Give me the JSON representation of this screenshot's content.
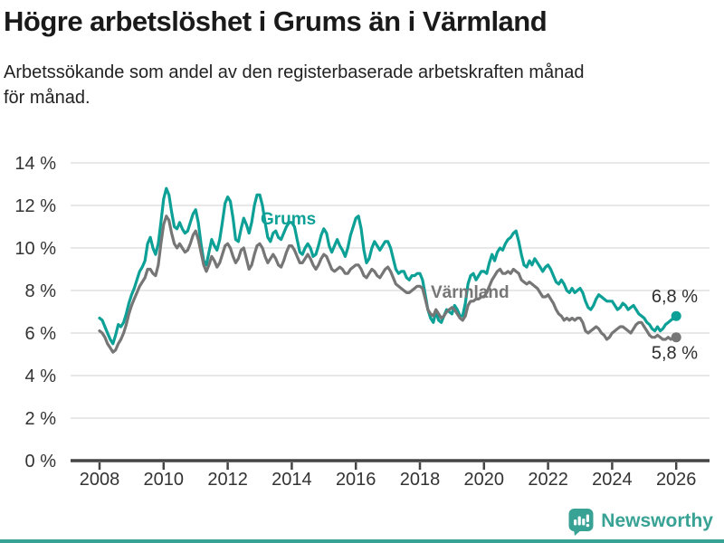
{
  "header": {
    "title": "Högre arbetslöshet i Grums än i Värmland",
    "subtitle_lines": [
      "Arbetssökande som andel av den registerbaserade arbetskraften månad",
      "för månad."
    ]
  },
  "colors": {
    "grums": "#0da096",
    "varmland": "#767676",
    "grid": "#dbdbdb",
    "axis": "#454545",
    "text": "#333333",
    "value_label": "#2e2e2e",
    "brand_teal": "#38a295"
  },
  "footer": {
    "brand_name": "Newsworthy"
  },
  "chart_data": {
    "type": "line",
    "title": "Högre arbetslöshet i Grums än i Värmland",
    "xlabel": "",
    "ylabel": "",
    "unit": "%",
    "frequency": "monthly",
    "start": "2008-01",
    "end": "2026-01",
    "start_year": 2008,
    "ylim": [
      0,
      14
    ],
    "grid": true,
    "legend_position": "inline-labels",
    "y_ticks": [
      0,
      2,
      4,
      6,
      8,
      10,
      12,
      14
    ],
    "y_tick_labels": [
      "0 %",
      "2 %",
      "4 %",
      "6 %",
      "8 %",
      "10 %",
      "12 %",
      "14 %"
    ],
    "x_tick_years": [
      2008,
      2010,
      2012,
      2014,
      2016,
      2018,
      2020,
      2022,
      2024,
      2026
    ],
    "x_tick_labels": [
      "2008",
      "2010",
      "2012",
      "2014",
      "2016",
      "2018",
      "2020",
      "2022",
      "2024",
      "2026"
    ],
    "series": [
      {
        "name": "Grums",
        "color": "#0da096",
        "end_label": "6,8 %",
        "end_value": 6.8,
        "values": [
          6.7,
          6.6,
          6.3,
          6.0,
          5.7,
          5.5,
          5.9,
          6.4,
          6.3,
          6.5,
          6.9,
          7.4,
          7.8,
          8.1,
          8.5,
          8.9,
          9.1,
          9.4,
          10.2,
          10.5,
          10.0,
          9.7,
          10.2,
          11.2,
          12.3,
          12.8,
          12.5,
          11.7,
          11.0,
          10.9,
          11.2,
          10.9,
          10.7,
          10.8,
          11.2,
          11.6,
          11.8,
          11.2,
          10.2,
          9.4,
          9.2,
          9.8,
          10.4,
          10.1,
          9.9,
          10.4,
          11.2,
          12.1,
          12.4,
          12.2,
          11.4,
          10.4,
          10.3,
          10.9,
          11.4,
          11.1,
          10.7,
          11.2,
          12.0,
          12.5,
          12.5,
          12.0,
          11.2,
          10.5,
          10.3,
          10.7,
          10.8,
          10.5,
          10.4,
          10.7,
          11.0,
          11.2,
          11.2,
          11.0,
          10.4,
          9.8,
          9.7,
          10.0,
          10.2,
          10.0,
          9.6,
          9.7,
          10.1,
          10.6,
          10.9,
          10.7,
          10.1,
          9.8,
          10.1,
          10.4,
          10.1,
          9.9,
          9.6,
          10.0,
          10.6,
          11.0,
          11.4,
          11.5,
          10.9,
          9.9,
          9.3,
          9.5,
          10.0,
          10.3,
          10.1,
          9.9,
          10.1,
          10.3,
          10.3,
          10.0,
          9.5,
          9.0,
          8.8,
          8.9,
          8.9,
          8.6,
          8.5,
          8.7,
          8.7,
          8.8,
          8.8,
          8.5,
          7.8,
          7.1,
          6.7,
          6.5,
          7.0,
          6.6,
          6.5,
          6.8,
          7.1,
          7.0,
          6.9,
          7.3,
          7.1,
          6.8,
          6.8,
          7.4,
          8.3,
          8.7,
          8.8,
          8.5,
          8.7,
          8.9,
          8.9,
          8.8,
          9.3,
          9.7,
          9.4,
          9.8,
          10.0,
          9.9,
          10.2,
          10.4,
          10.5,
          10.7,
          10.8,
          10.3,
          9.7,
          9.2,
          9.1,
          9.4,
          9.2,
          9.5,
          9.3,
          9.1,
          8.9,
          9.1,
          9.2,
          9.0,
          8.7,
          8.4,
          8.3,
          8.5,
          8.3,
          8.0,
          7.9,
          8.1,
          7.9,
          8.0,
          8.1,
          7.9,
          7.5,
          7.2,
          7.1,
          7.3,
          7.6,
          7.8,
          7.7,
          7.6,
          7.5,
          7.5,
          7.5,
          7.3,
          7.1,
          7.2,
          7.4,
          7.3,
          7.1,
          7.2,
          7.3,
          7.1,
          6.9,
          6.8,
          6.7,
          6.5,
          6.4,
          6.2,
          6.1,
          6.3,
          6.1,
          6.2,
          6.4,
          6.5,
          6.6,
          6.7,
          6.8
        ]
      },
      {
        "name": "Värmland",
        "color": "#767676",
        "end_label": "5,8 %",
        "end_value": 5.8,
        "values": [
          6.1,
          6.0,
          5.8,
          5.5,
          5.3,
          5.1,
          5.2,
          5.5,
          5.7,
          6.0,
          6.4,
          6.9,
          7.3,
          7.6,
          7.9,
          8.2,
          8.4,
          8.6,
          9.0,
          9.0,
          8.8,
          8.7,
          9.2,
          10.2,
          11.1,
          11.5,
          11.3,
          10.7,
          10.2,
          10.0,
          10.2,
          10.0,
          9.8,
          9.9,
          10.2,
          10.6,
          10.8,
          10.4,
          9.8,
          9.2,
          8.9,
          9.2,
          9.6,
          9.4,
          9.1,
          9.3,
          9.7,
          10.1,
          10.2,
          10.0,
          9.6,
          9.3,
          9.5,
          9.9,
          10.0,
          9.5,
          9.0,
          9.2,
          9.7,
          10.1,
          10.2,
          10.0,
          9.6,
          9.3,
          9.5,
          9.7,
          9.5,
          9.2,
          9.1,
          9.4,
          9.8,
          10.1,
          10.1,
          9.9,
          9.6,
          9.3,
          9.3,
          9.5,
          9.7,
          9.5,
          9.2,
          9.0,
          9.2,
          9.5,
          9.7,
          9.6,
          9.3,
          9.0,
          8.9,
          9.0,
          9.1,
          9.0,
          8.8,
          8.8,
          9.0,
          9.1,
          9.2,
          9.2,
          9.0,
          8.7,
          8.6,
          8.8,
          9.0,
          8.9,
          8.7,
          8.6,
          8.8,
          9.0,
          9.1,
          8.9,
          8.6,
          8.3,
          8.2,
          8.1,
          8.0,
          7.9,
          7.9,
          8.0,
          8.1,
          8.2,
          8.2,
          8.1,
          7.6,
          7.1,
          6.9,
          6.8,
          7.1,
          6.9,
          6.7,
          6.8,
          7.0,
          7.1,
          7.2,
          7.1,
          6.9,
          6.7,
          6.6,
          6.8,
          7.3,
          7.5,
          7.5,
          7.6,
          7.6,
          7.7,
          7.7,
          7.9,
          8.2,
          8.5,
          8.7,
          8.9,
          9.0,
          8.8,
          8.8,
          8.9,
          8.8,
          9.0,
          8.9,
          8.8,
          8.5,
          8.4,
          8.3,
          8.4,
          8.3,
          8.2,
          8.1,
          7.9,
          7.7,
          7.7,
          7.8,
          7.6,
          7.4,
          7.1,
          6.9,
          6.8,
          6.6,
          6.7,
          6.6,
          6.7,
          6.6,
          6.7,
          6.7,
          6.5,
          6.1,
          6.0,
          6.1,
          6.2,
          6.3,
          6.2,
          6.0,
          5.9,
          5.7,
          5.8,
          6.0,
          6.1,
          6.2,
          6.3,
          6.3,
          6.2,
          6.1,
          6.0,
          6.2,
          6.4,
          6.5,
          6.5,
          6.3,
          6.1,
          5.9,
          5.8,
          5.8,
          5.9,
          5.8,
          5.7,
          5.7,
          5.8,
          5.7,
          5.8,
          5.8
        ]
      }
    ]
  }
}
